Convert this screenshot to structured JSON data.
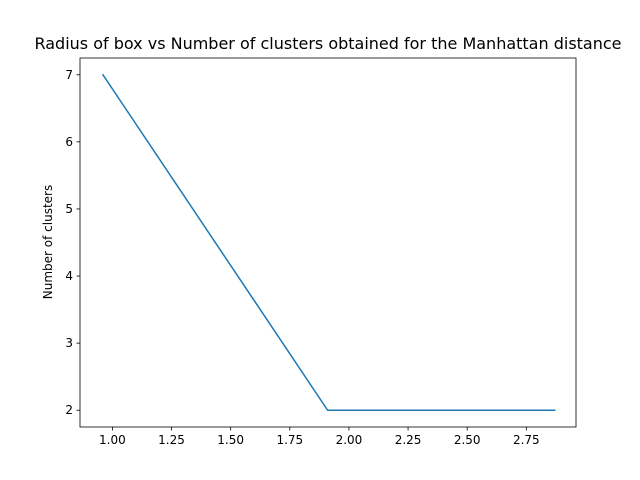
{
  "chart_data": {
    "type": "line",
    "title": "Radius of box vs Number of clusters obtained for the Manhattan distance",
    "xlabel": "",
    "ylabel": "Number of clusters",
    "xlim": [
      0.863,
      2.96
    ],
    "ylim": [
      1.75,
      7.25
    ],
    "x_ticks": [
      1.0,
      1.25,
      1.5,
      1.75,
      2.0,
      2.25,
      2.5,
      2.75
    ],
    "x_tick_labels": [
      "1.00",
      "1.25",
      "1.50",
      "1.75",
      "2.00",
      "2.25",
      "2.50",
      "2.75"
    ],
    "y_ticks": [
      2,
      3,
      4,
      5,
      6,
      7
    ],
    "y_tick_labels": [
      "2",
      "3",
      "4",
      "5",
      "6",
      "7"
    ],
    "grid": false,
    "series": [
      {
        "color": "#1f77b4",
        "x": [
          0.96,
          1.91,
          2.87
        ],
        "y": [
          7,
          2,
          2
        ]
      }
    ]
  }
}
